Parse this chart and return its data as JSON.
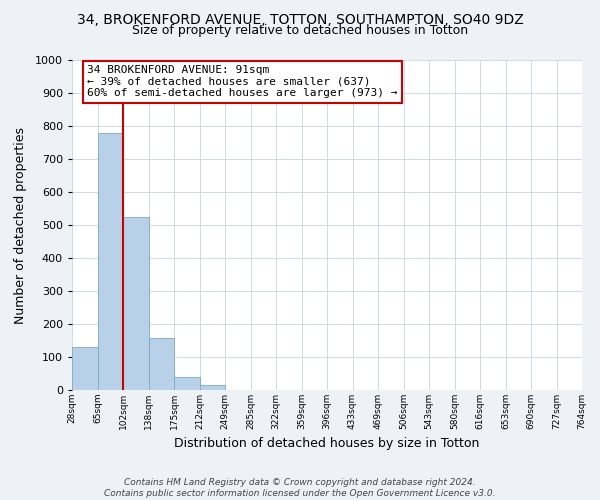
{
  "title": "34, BROKENFORD AVENUE, TOTTON, SOUTHAMPTON, SO40 9DZ",
  "subtitle": "Size of property relative to detached houses in Totton",
  "xlabel": "Distribution of detached houses by size in Totton",
  "ylabel": "Number of detached properties",
  "bin_labels": [
    "28sqm",
    "65sqm",
    "102sqm",
    "138sqm",
    "175sqm",
    "212sqm",
    "249sqm",
    "285sqm",
    "322sqm",
    "359sqm",
    "396sqm",
    "433sqm",
    "469sqm",
    "506sqm",
    "543sqm",
    "580sqm",
    "616sqm",
    "653sqm",
    "690sqm",
    "727sqm",
    "764sqm"
  ],
  "bar_values": [
    130,
    780,
    525,
    157,
    40,
    15,
    0,
    0,
    0,
    0,
    0,
    0,
    0,
    0,
    0,
    0,
    0,
    0,
    0,
    0
  ],
  "bar_color": "#b8d0e8",
  "bar_edge_color": "#7aaac8",
  "property_line_color": "#cc0000",
  "ylim": [
    0,
    1000
  ],
  "yticks": [
    0,
    100,
    200,
    300,
    400,
    500,
    600,
    700,
    800,
    900,
    1000
  ],
  "annotation_title": "34 BROKENFORD AVENUE: 91sqm",
  "annotation_line1": "← 39% of detached houses are smaller (637)",
  "annotation_line2": "60% of semi-detached houses are larger (973) →",
  "annotation_box_color": "#ffffff",
  "annotation_box_edge": "#cc0000",
  "footer1": "Contains HM Land Registry data © Crown copyright and database right 2024.",
  "footer2": "Contains public sector information licensed under the Open Government Licence v3.0.",
  "bg_color": "#eef2f6",
  "plot_bg_color": "#ffffff",
  "grid_color": "#c8d4e0"
}
